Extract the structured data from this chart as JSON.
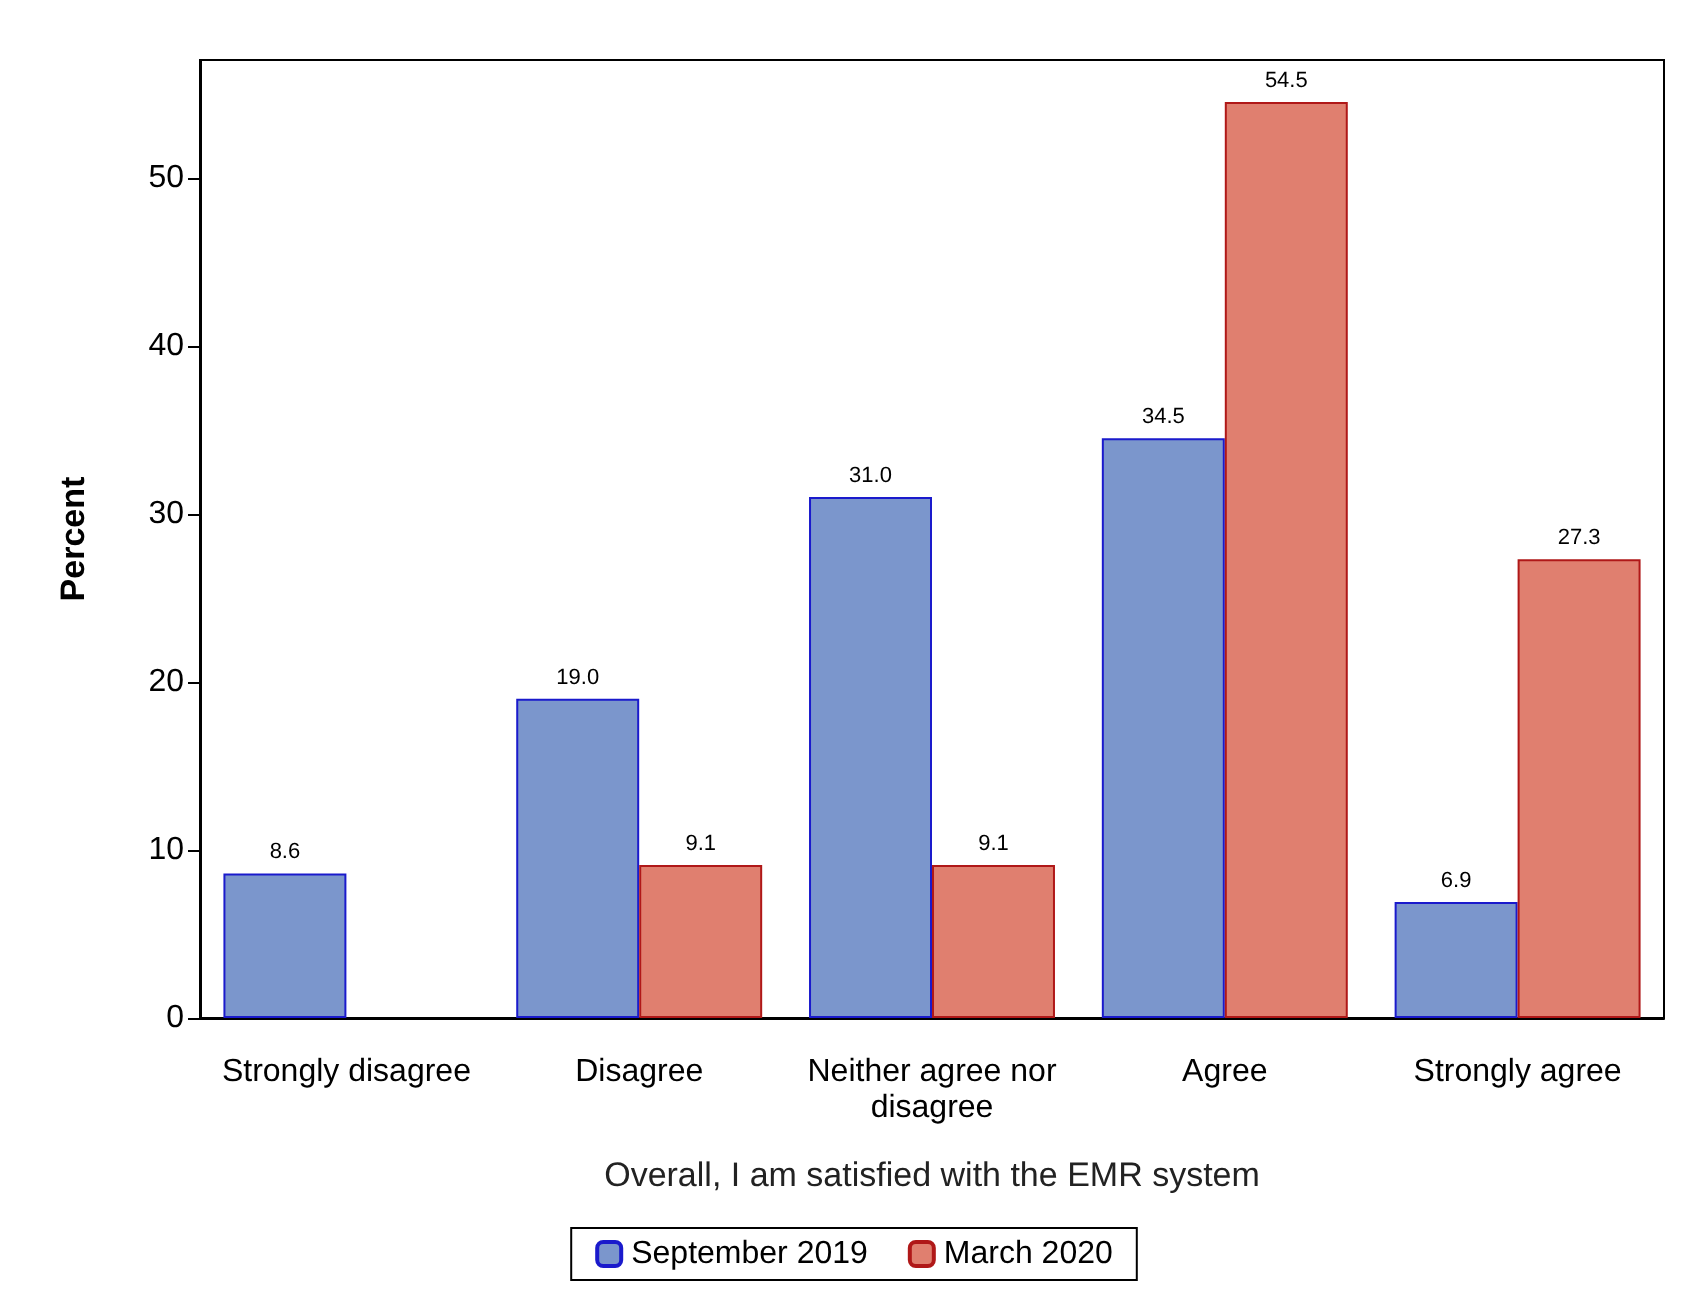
{
  "chart_data": {
    "type": "bar",
    "xlabel": "Overall, I am satisfied with the EMR system",
    "ylabel": "Percent",
    "categories": [
      "Strongly disagree",
      "Disagree",
      "Neither agree nor disagree",
      "Agree",
      "Strongly agree"
    ],
    "series": [
      {
        "name": "September 2019",
        "color": "#7b96cc",
        "values": [
          8.6,
          19.0,
          31.0,
          34.5,
          6.9
        ],
        "value_labels": [
          "8.6",
          "19.0",
          "31.0",
          "34.5",
          "6.9"
        ]
      },
      {
        "name": "March 2020",
        "color": "#e07f6f",
        "values": [
          null,
          9.1,
          9.1,
          54.5,
          27.3
        ],
        "value_labels": [
          null,
          "9.1",
          "9.1",
          "54.5",
          "27.3"
        ]
      }
    ],
    "ylim": [
      0,
      57
    ],
    "yticks": [
      0,
      10,
      20,
      30,
      40,
      50
    ],
    "grid": false,
    "legend": "bottom"
  }
}
